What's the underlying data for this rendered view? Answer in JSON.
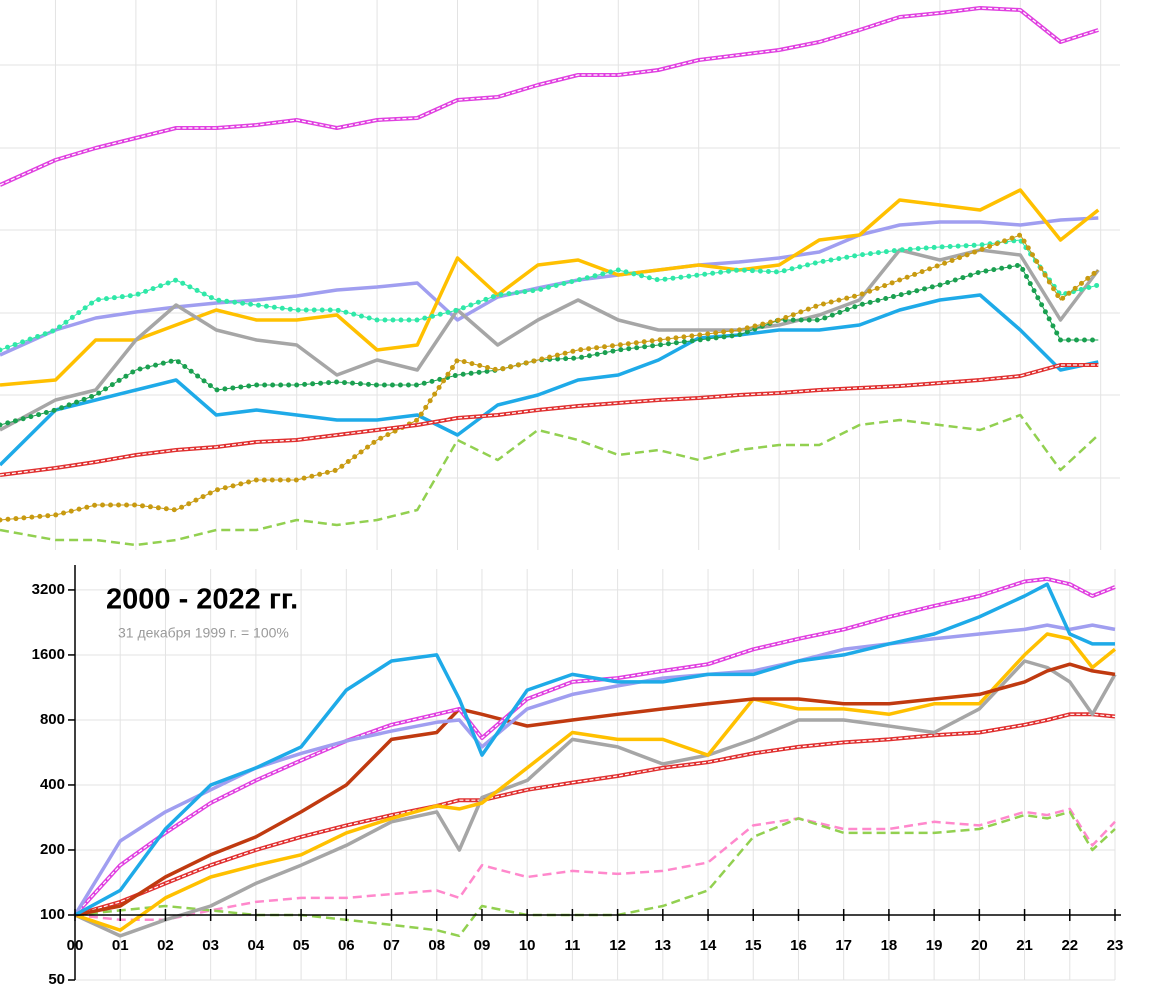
{
  "chart_data": [
    {
      "type": "line",
      "x": [
        0.31,
        1,
        1.5,
        2,
        2.5,
        3,
        3.5,
        4,
        4.5,
        5,
        5.5,
        6,
        6.5,
        7,
        7.5,
        8,
        8.5,
        9,
        9.5,
        10,
        10.5,
        11,
        11.5,
        12,
        12.5,
        13,
        13.5,
        13.97
      ],
      "xlim": [
        0.31,
        14.24
      ],
      "xticks": [
        1,
        2,
        3,
        4,
        5,
        6,
        7,
        8,
        9,
        10,
        11,
        12,
        13,
        14
      ],
      "ylim": [
        0,
        550
      ],
      "yticks": [
        72,
        155,
        237,
        320,
        402,
        485
      ],
      "grid": true,
      "series": [
        {
          "color": "#e040e0",
          "style": "double",
          "values": [
            365,
            390,
            402,
            412,
            422,
            422,
            425,
            430,
            422,
            430,
            432,
            450,
            453,
            465,
            475,
            475,
            480,
            490,
            495,
            500,
            508,
            520,
            533,
            537,
            542,
            540,
            508,
            520
          ]
        },
        {
          "color": "#a09ef0",
          "style": "solid",
          "values": [
            195,
            220,
            232,
            238,
            243,
            247,
            250,
            254,
            260,
            263,
            267,
            230,
            253,
            262,
            270,
            275,
            280,
            285,
            288,
            292,
            298,
            315,
            325,
            328,
            328,
            325,
            330,
            332
          ]
        },
        {
          "color": "#ffc000",
          "style": "solid",
          "values": [
            165,
            170,
            210,
            210,
            225,
            240,
            230,
            230,
            235,
            200,
            205,
            292,
            255,
            285,
            290,
            275,
            280,
            285,
            280,
            285,
            310,
            315,
            350,
            345,
            340,
            360,
            310,
            340
          ]
        },
        {
          "color": "#1eaae8",
          "style": "solid",
          "values": [
            85,
            140,
            150,
            160,
            170,
            135,
            140,
            135,
            130,
            130,
            135,
            115,
            145,
            155,
            170,
            175,
            190,
            212,
            215,
            220,
            220,
            225,
            240,
            250,
            255,
            220,
            180,
            188
          ]
        },
        {
          "color": "#a6a6a6",
          "style": "solid",
          "values": [
            120,
            150,
            160,
            210,
            245,
            220,
            210,
            205,
            175,
            190,
            180,
            240,
            205,
            230,
            250,
            230,
            220,
            220,
            220,
            225,
            235,
            250,
            300,
            290,
            300,
            295,
            230,
            280
          ]
        },
        {
          "color": "#2fe8a8",
          "style": "dotted",
          "values": [
            200,
            220,
            250,
            255,
            270,
            250,
            245,
            240,
            240,
            230,
            230,
            240,
            255,
            260,
            270,
            280,
            270,
            275,
            280,
            278,
            288,
            295,
            300,
            303,
            305,
            310,
            255,
            265
          ]
        },
        {
          "color": "#1aa050",
          "style": "dotted",
          "values": [
            125,
            140,
            155,
            180,
            190,
            160,
            165,
            165,
            168,
            165,
            165,
            175,
            180,
            190,
            192,
            200,
            205,
            210,
            215,
            230,
            230,
            245,
            255,
            265,
            278,
            285,
            210,
            210
          ]
        },
        {
          "color": "#c89a10",
          "style": "dotted",
          "values": [
            30,
            35,
            45,
            45,
            40,
            60,
            70,
            70,
            80,
            110,
            130,
            190,
            180,
            190,
            200,
            205,
            210,
            215,
            220,
            230,
            245,
            255,
            270,
            285,
            300,
            315,
            250,
            280
          ]
        },
        {
          "color": "#e03030",
          "style": "double",
          "values": [
            75,
            82,
            88,
            95,
            100,
            103,
            108,
            110,
            115,
            120,
            125,
            132,
            135,
            140,
            144,
            147,
            150,
            152,
            155,
            157,
            160,
            162,
            164,
            167,
            170,
            174,
            185,
            185
          ]
        },
        {
          "color": "#92d050",
          "style": "dashed",
          "values": [
            20,
            10,
            10,
            5,
            10,
            20,
            20,
            30,
            25,
            30,
            40,
            110,
            90,
            120,
            110,
            95,
            100,
            90,
            100,
            105,
            105,
            125,
            130,
            125,
            120,
            135,
            80,
            115
          ]
        }
      ]
    },
    {
      "type": "line",
      "title": "2000 - 2022 гг.",
      "subtitle": "31 декабря 1999 г. = 100%",
      "log_scale": true,
      "grid": true,
      "x_axis_crosses": 100,
      "x": [
        0,
        1,
        2,
        3,
        4,
        5,
        6,
        7,
        8,
        8.5,
        9,
        10,
        11,
        12,
        13,
        14,
        15,
        16,
        17,
        18,
        19,
        20,
        21,
        21.5,
        22,
        22.5,
        23
      ],
      "xlim": [
        0,
        23
      ],
      "xticks": [
        {
          "value": 0,
          "label": "00"
        },
        {
          "value": 1,
          "label": "01"
        },
        {
          "value": 2,
          "label": "02"
        },
        {
          "value": 3,
          "label": "03"
        },
        {
          "value": 4,
          "label": "04"
        },
        {
          "value": 5,
          "label": "05"
        },
        {
          "value": 6,
          "label": "06"
        },
        {
          "value": 7,
          "label": "07"
        },
        {
          "value": 8,
          "label": "08"
        },
        {
          "value": 9,
          "label": "09"
        },
        {
          "value": 10,
          "label": "10"
        },
        {
          "value": 11,
          "label": "11"
        },
        {
          "value": 12,
          "label": "12"
        },
        {
          "value": 13,
          "label": "13"
        },
        {
          "value": 14,
          "label": "14"
        },
        {
          "value": 15,
          "label": "15"
        },
        {
          "value": 16,
          "label": "16"
        },
        {
          "value": 17,
          "label": "17"
        },
        {
          "value": 18,
          "label": "18"
        },
        {
          "value": 19,
          "label": "19"
        },
        {
          "value": 20,
          "label": "20"
        },
        {
          "value": 21,
          "label": "21"
        },
        {
          "value": 22,
          "label": "22"
        },
        {
          "value": 23,
          "label": "23"
        }
      ],
      "ylim": [
        50,
        4000
      ],
      "yticks": [
        50,
        100,
        200,
        400,
        800,
        1600,
        3200
      ],
      "series": [
        {
          "color": "#ff88cc",
          "style": "dashed",
          "values": [
            100,
            95,
            95,
            105,
            115,
            120,
            120,
            125,
            130,
            120,
            170,
            150,
            160,
            155,
            160,
            175,
            260,
            280,
            250,
            250,
            270,
            260,
            300,
            290,
            310,
            210,
            270
          ]
        },
        {
          "color": "#92d050",
          "style": "dashed",
          "values": [
            100,
            105,
            110,
            105,
            100,
            100,
            95,
            90,
            85,
            80,
            110,
            100,
            100,
            100,
            110,
            130,
            230,
            280,
            240,
            240,
            240,
            250,
            290,
            280,
            300,
            200,
            250
          ]
        },
        {
          "color": "#e03030",
          "style": "double",
          "values": [
            100,
            115,
            140,
            170,
            200,
            230,
            260,
            290,
            320,
            340,
            340,
            380,
            410,
            440,
            480,
            510,
            560,
            600,
            630,
            650,
            680,
            700,
            760,
            800,
            850,
            850,
            830
          ]
        },
        {
          "color": "#a6a6a6",
          "style": "solid",
          "values": [
            100,
            80,
            95,
            110,
            140,
            170,
            210,
            270,
            300,
            200,
            350,
            420,
            650,
            600,
            500,
            550,
            650,
            800,
            800,
            750,
            700,
            900,
            1500,
            1400,
            1200,
            850,
            1300
          ]
        },
        {
          "color": "#ffc000",
          "style": "solid",
          "values": [
            100,
            85,
            120,
            150,
            170,
            190,
            240,
            280,
            320,
            310,
            330,
            480,
            700,
            650,
            650,
            550,
            1000,
            900,
            900,
            850,
            950,
            950,
            1600,
            2000,
            1900,
            1400,
            1700
          ]
        },
        {
          "color": "#c03a10",
          "style": "solid",
          "values": [
            100,
            110,
            150,
            190,
            230,
            300,
            400,
            650,
            700,
            900,
            850,
            750,
            800,
            850,
            900,
            950,
            1000,
            1000,
            950,
            950,
            1000,
            1050,
            1200,
            1350,
            1450,
            1350,
            1300
          ]
        },
        {
          "color": "#e040e0",
          "style": "double",
          "values": [
            100,
            170,
            240,
            330,
            420,
            520,
            640,
            760,
            850,
            900,
            660,
            1000,
            1200,
            1250,
            1350,
            1450,
            1700,
            1900,
            2100,
            2400,
            2700,
            3000,
            3500,
            3600,
            3400,
            3000,
            3300
          ]
        },
        {
          "color": "#a09ef0",
          "style": "solid",
          "values": [
            100,
            220,
            300,
            380,
            480,
            560,
            640,
            710,
            780,
            800,
            600,
            900,
            1050,
            1150,
            1250,
            1300,
            1350,
            1500,
            1700,
            1800,
            1900,
            2000,
            2100,
            2200,
            2100,
            2200,
            2100
          ]
        },
        {
          "color": "#1eaae8",
          "style": "solid",
          "values": [
            100,
            130,
            250,
            400,
            480,
            600,
            1100,
            1500,
            1600,
            1000,
            550,
            1100,
            1300,
            1200,
            1200,
            1300,
            1300,
            1500,
            1600,
            1800,
            2000,
            2400,
            3000,
            3400,
            2000,
            1800,
            1800
          ]
        }
      ]
    }
  ]
}
